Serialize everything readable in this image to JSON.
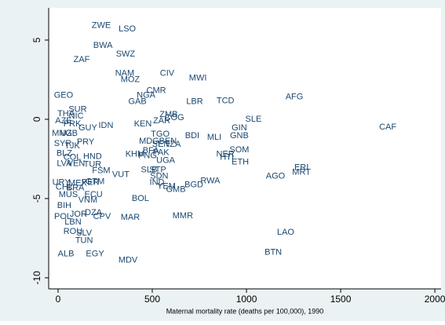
{
  "chart_data": {
    "type": "scatter",
    "xlabel": "Maternal mortality rate (deaths per 100,000), 1990",
    "xlim": [
      -50,
      2033
    ],
    "ylim": [
      -10.7,
      7.03
    ],
    "xticks": [
      0,
      500,
      1000,
      1500,
      2000
    ],
    "yticks": [
      -10,
      -5,
      0,
      5
    ],
    "grid": false,
    "color": "#1a476f",
    "labels": [
      "ZWE",
      "LSO",
      "BWA",
      "SWZ",
      "ZAF",
      "NAM",
      "MOZ",
      "CIV",
      "MWI",
      "CMR",
      "NGA",
      "GAB",
      "LBR",
      "TCD",
      "AFG",
      "GEO",
      "SUR",
      "THA",
      "NIC",
      "AZE",
      "PRK",
      "GUY",
      "IDN",
      "KEN",
      "ZAR",
      "ZMB",
      "COG",
      "SLE",
      "CAF",
      "GIN",
      "GNB",
      "BDI",
      "MLI",
      "PRY",
      "TGO",
      "MDG",
      "BEN",
      "SEN",
      "TZA",
      "SOM",
      "NER",
      "HTI",
      "ETH",
      "KHM",
      "PAK",
      "BFA",
      "PNG",
      "UGA",
      "MNG",
      "UZB",
      "TJK",
      "SYR",
      "BLZ",
      "COL",
      "HND",
      "LVA",
      "VEN",
      "TUR",
      "FSM",
      "VUT",
      "SLB",
      "STP",
      "SDN",
      "IND",
      "YEM",
      "GMB",
      "BGD",
      "RWA",
      "AGO",
      "ERI",
      "MRT",
      "MDV",
      "BOL",
      "MAR",
      "MMR",
      "LAO",
      "BTN",
      "ALB",
      "EGY",
      "TUN",
      "SLV",
      "ROU",
      "BIH",
      "POL",
      "DZA",
      "CPV",
      "LBN",
      "JOR",
      "VNM",
      "ECU",
      "MUS",
      "PER",
      "GTM",
      "URY",
      "BRA",
      "CHL",
      "MEX"
    ],
    "x": [
      229,
      367,
      238,
      358,
      125,
      354,
      383,
      579,
      742,
      521,
      467,
      421,
      725,
      888,
      1254,
      29,
      104,
      42,
      96,
      29,
      75,
      158,
      254,
      450,
      550,
      587,
      617,
      1037,
      1750,
      962,
      962,
      712,
      829,
      146,
      542,
      483,
      583,
      546,
      608,
      962,
      888,
      896,
      967,
      408,
      546,
      492,
      475,
      571,
      21,
      58,
      75,
      25,
      33,
      75,
      183,
      33,
      96,
      183,
      229,
      333,
      483,
      529,
      537,
      525,
      575,
      625,
      721,
      808,
      1154,
      1292,
      1292,
      371,
      437,
      383,
      662,
      1208,
      1142,
      42,
      196,
      138,
      138,
      79,
      33,
      25,
      188,
      233,
      79,
      108,
      158,
      188,
      54,
      171,
      196,
      17,
      92,
      33,
      104
    ],
    "values": [
      5.9,
      5.7,
      4.65,
      4.1,
      3.75,
      2.9,
      2.5,
      2.9,
      2.6,
      1.8,
      1.5,
      1.1,
      1.1,
      1.15,
      1.4,
      1.5,
      0.6,
      0.35,
      0.2,
      -0.1,
      -0.3,
      -0.55,
      -0.4,
      -0.3,
      -0.1,
      0.3,
      0.1,
      0,
      -0.5,
      -0.55,
      -1.05,
      -1.05,
      -1.15,
      -1.45,
      -0.95,
      -1.4,
      -1.4,
      -1.6,
      -1.6,
      -1.95,
      -2.2,
      -2.4,
      -2.7,
      -2.2,
      -2.1,
      -2.0,
      -2.3,
      -2.6,
      -0.9,
      -0.9,
      -1.7,
      -1.55,
      -2.15,
      -2.4,
      -2.35,
      -2.8,
      -2.8,
      -2.85,
      -3.25,
      -3.5,
      -3.2,
      -3.2,
      -3.6,
      -4.0,
      -4.25,
      -4.45,
      -4.15,
      -3.9,
      -3.6,
      -3.05,
      -3.35,
      -8.9,
      -5.0,
      -6.2,
      -6.1,
      -7.15,
      -8.4,
      -8.5,
      -8.5,
      -7.65,
      -7.2,
      -7.1,
      -5.45,
      -6.15,
      -5.9,
      -6.15,
      -6.5,
      -6.0,
      -5.1,
      -4.75,
      -4.75,
      -4.0,
      -3.95,
      -4.0,
      -4.35,
      -4.3,
      -4.05
    ]
  }
}
